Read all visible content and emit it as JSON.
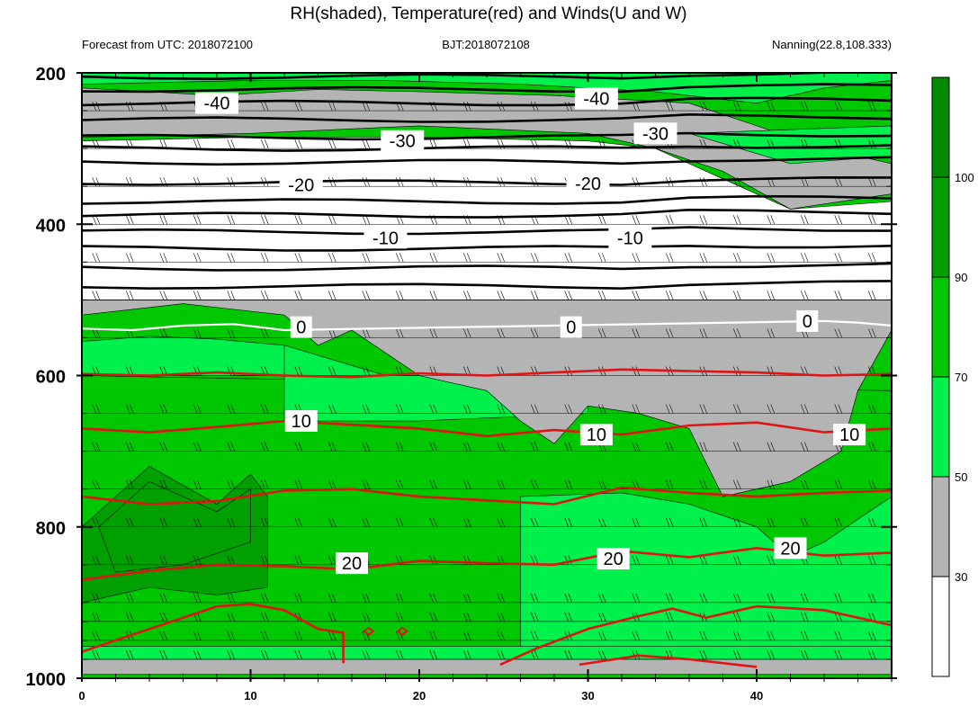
{
  "chart_data": {
    "type": "contour",
    "title": "RH(shaded), Temperature(red) and Winds(U and W)",
    "left_subtitle": "Forecast from UTC: 2018072100",
    "center_subtitle": "BJT:2018072108",
    "right_subtitle": "Nanning(22.8,108.333)",
    "xlim": [
      0,
      48
    ],
    "x_ticks": [
      "0",
      "10",
      "20",
      "30",
      "40"
    ],
    "x_tick_values": [
      0,
      10,
      20,
      30,
      40
    ],
    "ylim": [
      1000,
      200
    ],
    "y_ticks": [
      "200",
      "400",
      "600",
      "800",
      "1000"
    ],
    "y_tick_values": [
      200,
      400,
      600,
      800,
      1000
    ],
    "levels": [
      200,
      250,
      300,
      350,
      400,
      450,
      500,
      550,
      600,
      650,
      700,
      750,
      800,
      850,
      900,
      925,
      950,
      975,
      1000
    ],
    "colorbar": {
      "labels": [
        "100",
        "90",
        "70",
        "50",
        "30"
      ],
      "label_values": [
        100,
        90,
        70,
        50,
        30
      ],
      "bins": [
        {
          "lo": 0,
          "hi": 30,
          "color": "#ffffff"
        },
        {
          "lo": 30,
          "hi": 50,
          "color": "#b4b4b4"
        },
        {
          "lo": 50,
          "hi": 70,
          "color": "#00f04c"
        },
        {
          "lo": 70,
          "hi": 90,
          "color": "#00c800"
        },
        {
          "lo": 90,
          "hi": 100,
          "color": "#00a000"
        },
        {
          "lo": 100,
          "hi": 110,
          "color": "#008c00"
        }
      ]
    },
    "rh_layers": [
      {
        "class": 4,
        "color": "#00c800",
        "points": [
          [
            0,
            600
          ],
          [
            48,
            620
          ],
          [
            48,
            965
          ],
          [
            0,
            965
          ]
        ]
      },
      {
        "class": 3,
        "color": "#00f04c",
        "points": [
          [
            0,
            555
          ],
          [
            4,
            548
          ],
          [
            8,
            552
          ],
          [
            12,
            560
          ],
          [
            12,
            600
          ],
          [
            0,
            600
          ]
        ]
      },
      {
        "class": 3,
        "color": "#00f04c",
        "points": [
          [
            12,
            560
          ],
          [
            18,
            600
          ],
          [
            30,
            600
          ],
          [
            30,
            650
          ],
          [
            20,
            660
          ],
          [
            12,
            660
          ]
        ]
      },
      {
        "class": 3,
        "color": "#00f04c",
        "points": [
          [
            26,
            760
          ],
          [
            32,
            755
          ],
          [
            36,
            770
          ],
          [
            40,
            800
          ],
          [
            42,
            840
          ],
          [
            44,
            820
          ],
          [
            46,
            790
          ],
          [
            48,
            760
          ],
          [
            48,
            960
          ],
          [
            26,
            960
          ]
        ]
      },
      {
        "class": 2,
        "color": "#b4b4b4",
        "points": [
          [
            0,
            520
          ],
          [
            6,
            505
          ],
          [
            12,
            520
          ],
          [
            14,
            560
          ],
          [
            16,
            540
          ],
          [
            18,
            570
          ],
          [
            20,
            600
          ],
          [
            24,
            620
          ],
          [
            26,
            660
          ],
          [
            28,
            690
          ],
          [
            30,
            640
          ],
          [
            33,
            650
          ],
          [
            36,
            670
          ],
          [
            38,
            760
          ],
          [
            42,
            740
          ],
          [
            45,
            700
          ],
          [
            46,
            620
          ],
          [
            48,
            540
          ],
          [
            48,
            500
          ],
          [
            0,
            500
          ]
        ]
      },
      {
        "class": 5,
        "color": "#00a000",
        "points": [
          [
            0,
            870
          ],
          [
            0,
            800
          ],
          [
            4,
            720
          ],
          [
            8,
            770
          ],
          [
            10,
            730
          ],
          [
            11,
            760
          ],
          [
            11,
            800
          ],
          [
            11,
            880
          ],
          [
            8,
            890
          ],
          [
            4,
            880
          ],
          [
            0,
            900
          ]
        ]
      },
      {
        "class": 5,
        "color": "#00a000",
        "points": [
          [
            1,
            800
          ],
          [
            4,
            740
          ],
          [
            8,
            780
          ],
          [
            10,
            750
          ],
          [
            10,
            820
          ],
          [
            6,
            850
          ],
          [
            2,
            860
          ]
        ]
      },
      {
        "class": 3,
        "color": "#00f04c",
        "points": [
          [
            0,
            958
          ],
          [
            48,
            958
          ],
          [
            48,
            978
          ],
          [
            0,
            978
          ]
        ]
      },
      {
        "class": 2,
        "color": "#b4b4b4",
        "points": [
          [
            0,
            975
          ],
          [
            48,
            975
          ],
          [
            48,
            995
          ],
          [
            0,
            995
          ]
        ]
      },
      {
        "class": 1,
        "color": "#ffffff",
        "points": [
          [
            0,
            290
          ],
          [
            10,
            285
          ],
          [
            20,
            285
          ],
          [
            30,
            290
          ],
          [
            34,
            300
          ],
          [
            38,
            340
          ],
          [
            42,
            380
          ],
          [
            48,
            370
          ],
          [
            48,
            500
          ],
          [
            0,
            500
          ]
        ]
      },
      {
        "class": 2,
        "color": "#b4b4b4",
        "points": [
          [
            0,
            220
          ],
          [
            8,
            230
          ],
          [
            14,
            222
          ],
          [
            20,
            225
          ],
          [
            28,
            230
          ],
          [
            36,
            240
          ],
          [
            40,
            270
          ],
          [
            44,
            300
          ],
          [
            48,
            320
          ],
          [
            48,
            360
          ],
          [
            42,
            380
          ],
          [
            38,
            330
          ],
          [
            34,
            300
          ],
          [
            30,
            280
          ],
          [
            20,
            270
          ],
          [
            10,
            280
          ],
          [
            0,
            285
          ]
        ]
      },
      {
        "class": 3,
        "color": "#00f04c",
        "points": [
          [
            0,
            200
          ],
          [
            48,
            200
          ],
          [
            48,
            210
          ],
          [
            44,
            220
          ],
          [
            40,
            240
          ],
          [
            34,
            225
          ],
          [
            26,
            215
          ],
          [
            18,
            210
          ],
          [
            10,
            210
          ],
          [
            0,
            215
          ]
        ]
      },
      {
        "class": 3,
        "color": "#00f04c",
        "points": [
          [
            36,
            280
          ],
          [
            48,
            270
          ],
          [
            48,
            310
          ],
          [
            42,
            320
          ]
        ]
      }
    ],
    "temperature_red": [
      {
        "label": "10",
        "x": [
          0,
          4,
          8,
          12,
          16,
          20,
          24,
          28,
          32,
          36,
          40,
          44,
          48
        ],
        "p": [
          670,
          675,
          668,
          660,
          665,
          670,
          680,
          672,
          678,
          666,
          662,
          675,
          670
        ]
      },
      {
        "label": "",
        "x": [
          0,
          4,
          8,
          12,
          16,
          20,
          24,
          28,
          32,
          36,
          40,
          44,
          48
        ],
        "p": [
          598,
          600,
          596,
          600,
          602,
          597,
          600,
          596,
          592,
          594,
          596,
          600,
          598
        ]
      },
      {
        "label": "",
        "x": [
          0,
          4,
          8,
          12,
          16,
          20,
          24,
          28,
          32,
          36,
          40,
          44,
          48
        ],
        "p": [
          760,
          770,
          766,
          752,
          750,
          760,
          765,
          770,
          748,
          755,
          760,
          755,
          752
        ]
      },
      {
        "label": "20",
        "x": [
          0,
          4,
          8,
          12,
          16,
          20,
          24,
          28,
          32,
          36,
          40,
          44,
          48
        ],
        "p": [
          870,
          858,
          850,
          852,
          856,
          845,
          848,
          850,
          832,
          840,
          828,
          838,
          834
        ]
      },
      {
        "label": "",
        "x": [
          0,
          2,
          4,
          6,
          8,
          10,
          12,
          14,
          15.5,
          15.5
        ],
        "p": [
          965,
          950,
          935,
          920,
          905,
          902,
          910,
          935,
          940,
          980
        ]
      },
      {
        "label": "",
        "x": [
          24.8,
          27,
          30,
          33,
          35,
          37,
          40,
          44,
          48
        ],
        "p": [
          982,
          960,
          935,
          918,
          908,
          920,
          905,
          910,
          930
        ]
      },
      {
        "label": "",
        "x": [
          29.5,
          33,
          36,
          40
        ],
        "p": [
          982,
          970,
          975,
          985
        ]
      }
    ],
    "isotherms_black": {
      "x_samples": 13
    },
    "temperature_labels": [
      {
        "text": "10",
        "x": 13,
        "p": 660
      },
      {
        "text": "10",
        "x": 30.5,
        "p": 678
      },
      {
        "text": "10",
        "x": 45.5,
        "p": 678
      },
      {
        "text": "20",
        "x": 16,
        "p": 848
      },
      {
        "text": "20",
        "x": 31.5,
        "p": 842
      },
      {
        "text": "20",
        "x": 42,
        "p": 828
      }
    ],
    "black_labels": [
      {
        "text": "-40",
        "x": 8,
        "p": 240
      },
      {
        "text": "-40",
        "x": 30.5,
        "p": 234
      },
      {
        "text": "-30",
        "x": 19,
        "p": 290
      },
      {
        "text": "-30",
        "x": 34,
        "p": 280
      },
      {
        "text": "-20",
        "x": 13,
        "p": 348
      },
      {
        "text": "-20",
        "x": 30,
        "p": 346
      },
      {
        "text": "-10",
        "x": 18,
        "p": 418
      },
      {
        "text": "-10",
        "x": 32.5,
        "p": 418
      },
      {
        "text": "0",
        "x": 13,
        "p": 536
      },
      {
        "text": "0",
        "x": 29,
        "p": 536
      },
      {
        "text": "0",
        "x": 43,
        "p": 528
      }
    ],
    "zero_line": {
      "x": [
        0,
        3,
        6,
        9,
        12,
        44,
        46,
        48
      ],
      "p": [
        538,
        540,
        534,
        532,
        540,
        528,
        530,
        534
      ]
    }
  }
}
